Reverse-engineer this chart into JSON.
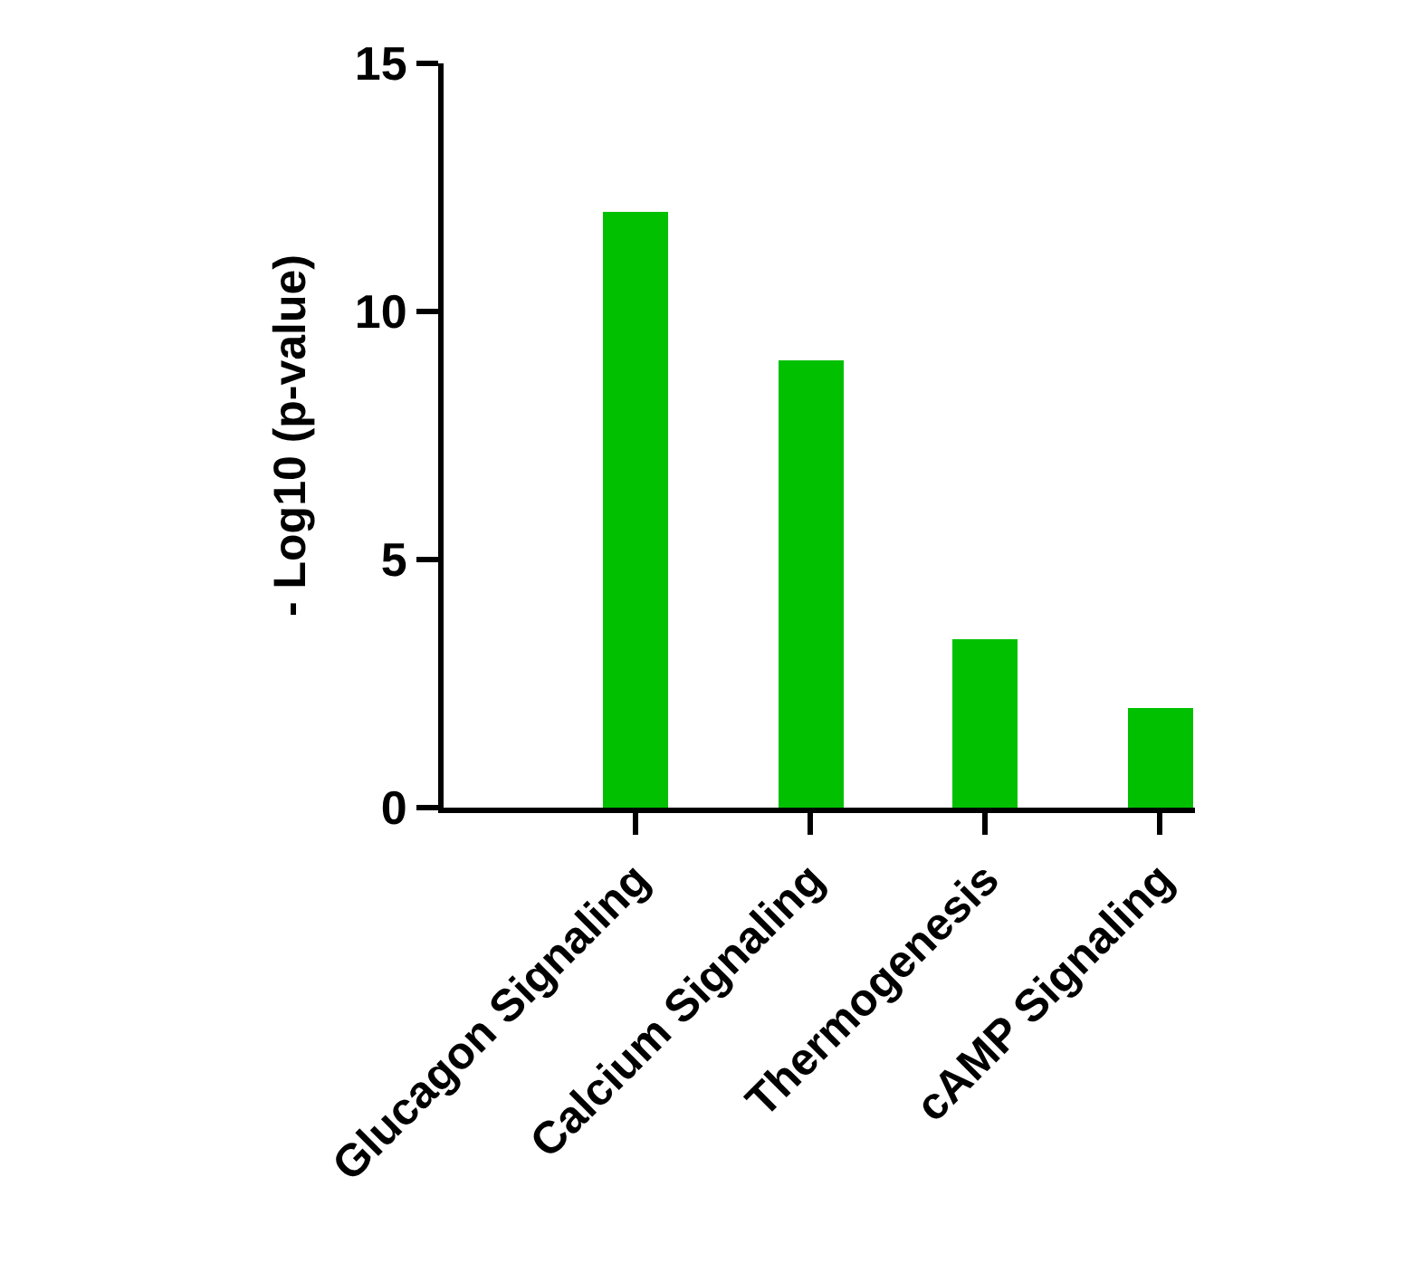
{
  "chart_data": {
    "type": "bar",
    "ylabel": "- Log10 (p-value)",
    "categories": [
      "Glucagon Signaling",
      "Calcium Signaling",
      "Thermogenesis",
      "cAMP Signaling"
    ],
    "values": [
      12,
      9,
      3.4,
      2
    ],
    "color": "#00c000",
    "ylim": [
      0,
      15
    ],
    "yticks": [
      0,
      5,
      10,
      15
    ]
  }
}
